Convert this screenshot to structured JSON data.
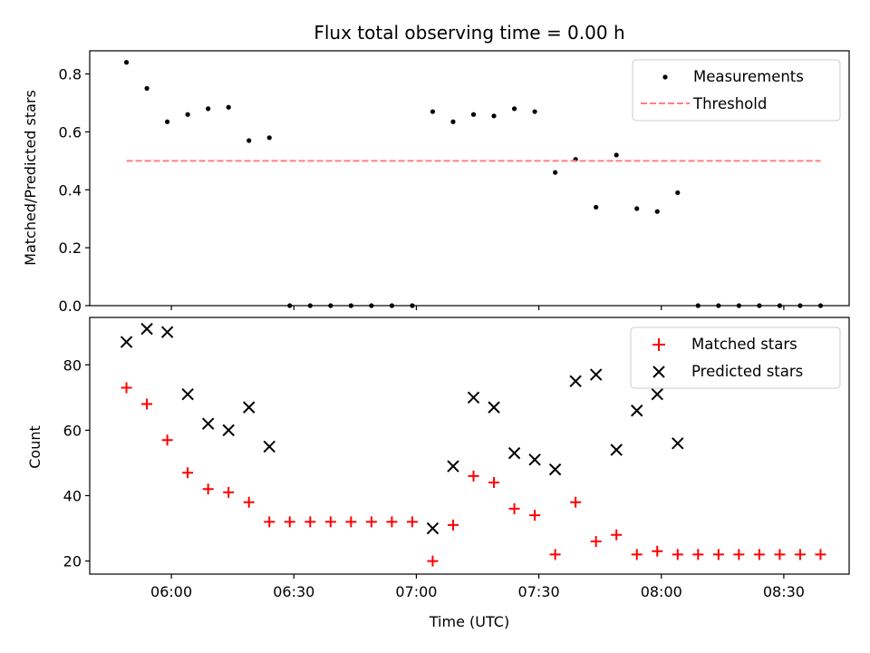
{
  "chart_data": [
    {
      "type": "scatter",
      "panel": "top",
      "title": "Flux total observing time = 0.00 h",
      "xlabel": "",
      "ylabel": "Matched/Predicted stars",
      "ylim": [
        0,
        0.88
      ],
      "yticks": [
        0.0,
        0.2,
        0.4,
        0.6,
        0.8
      ],
      "ytick_labels": [
        "0.0",
        "0.2",
        "0.4",
        "0.6",
        "0.8"
      ],
      "xlim": [
        "05:40",
        "08:46"
      ],
      "xticks": [
        "06:00",
        "06:30",
        "07:00",
        "07:30",
        "08:00",
        "08:30"
      ],
      "legend_position": "upper right",
      "grid": false,
      "series": [
        {
          "name": "Measurements",
          "color": "#000000",
          "marker": "dot",
          "x": [
            "05:49",
            "05:54",
            "05:59",
            "06:04",
            "06:09",
            "06:14",
            "06:19",
            "06:24",
            "06:29",
            "06:34",
            "06:39",
            "06:44",
            "06:49",
            "06:54",
            "06:59",
            "07:04",
            "07:09",
            "07:14",
            "07:19",
            "07:24",
            "07:29",
            "07:34",
            "07:39",
            "07:44",
            "07:49",
            "07:54",
            "07:59",
            "08:04",
            "08:09",
            "08:14",
            "08:19",
            "08:24",
            "08:29",
            "08:34",
            "08:39"
          ],
          "y": [
            0.84,
            0.75,
            0.635,
            0.66,
            0.68,
            0.685,
            0.57,
            0.58,
            0.0,
            0.0,
            0.0,
            0.0,
            0.0,
            0.0,
            0.0,
            0.67,
            0.635,
            0.66,
            0.655,
            0.68,
            0.67,
            0.46,
            0.505,
            0.34,
            0.52,
            0.335,
            0.325,
            0.39,
            0.0,
            0.0,
            0.0,
            0.0,
            0.0,
            0.0,
            0.0
          ]
        },
        {
          "name": "Threshold",
          "color": "#ff8080",
          "style": "dashed",
          "x": [
            "05:49",
            "08:39"
          ],
          "y": [
            0.5,
            0.5
          ]
        }
      ]
    },
    {
      "type": "scatter",
      "panel": "bottom",
      "title": "",
      "xlabel": "Time (UTC)",
      "ylabel": "Count",
      "ylim": [
        16,
        94.5
      ],
      "yticks": [
        20,
        40,
        60,
        80
      ],
      "ytick_labels": [
        "20",
        "40",
        "60",
        "80"
      ],
      "xlim": [
        "05:40",
        "08:46"
      ],
      "xticks": [
        "06:00",
        "06:30",
        "07:00",
        "07:30",
        "08:00",
        "08:30"
      ],
      "xtick_labels": [
        "06:00",
        "06:30",
        "07:00",
        "07:30",
        "08:00",
        "08:30"
      ],
      "legend_position": "upper right",
      "grid": false,
      "series": [
        {
          "name": "Matched stars",
          "color": "#ff0000",
          "marker": "plus",
          "x": [
            "05:49",
            "05:54",
            "05:59",
            "06:04",
            "06:09",
            "06:14",
            "06:19",
            "06:24",
            "06:29",
            "06:34",
            "06:39",
            "06:44",
            "06:49",
            "06:54",
            "06:59",
            "07:04",
            "07:09",
            "07:14",
            "07:19",
            "07:24",
            "07:29",
            "07:34",
            "07:39",
            "07:44",
            "07:49",
            "07:54",
            "07:59",
            "08:04",
            "08:09",
            "08:14",
            "08:19",
            "08:24",
            "08:29",
            "08:34",
            "08:39"
          ],
          "y": [
            73,
            68,
            57,
            47,
            42,
            41,
            38,
            32,
            32,
            32,
            32,
            32,
            32,
            32,
            32,
            20,
            31,
            46,
            44,
            36,
            34,
            22,
            38,
            26,
            28,
            22,
            23,
            22,
            22,
            22,
            22,
            22,
            22,
            22,
            22
          ]
        },
        {
          "name": "Predicted stars",
          "color": "#000000",
          "marker": "x",
          "x": [
            "05:49",
            "05:54",
            "05:59",
            "06:04",
            "06:09",
            "06:14",
            "06:19",
            "06:24",
            "07:04",
            "07:09",
            "07:14",
            "07:19",
            "07:24",
            "07:29",
            "07:34",
            "07:39",
            "07:44",
            "07:49",
            "07:54",
            "07:59",
            "08:04"
          ],
          "y": [
            87,
            91,
            90,
            71,
            62,
            60,
            67,
            55,
            30,
            49,
            70,
            67,
            53,
            51,
            48,
            75,
            77,
            54,
            66,
            71,
            56
          ]
        }
      ]
    }
  ]
}
